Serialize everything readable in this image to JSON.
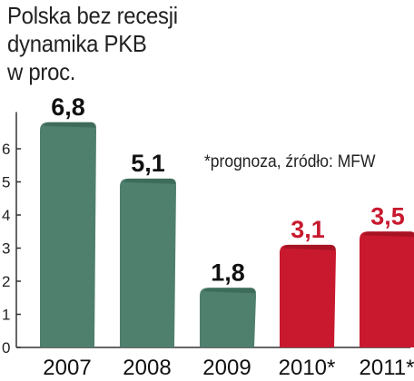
{
  "chart_data": {
    "type": "bar",
    "title_lines": [
      "Polska bez recesji",
      "dynamika PKB",
      "w proc."
    ],
    "note": "*prognoza, źródło: MFW",
    "categories": [
      "2007",
      "2008",
      "2009",
      "2010*",
      "2011*"
    ],
    "values": [
      6.8,
      5.1,
      1.8,
      3.1,
      3.5
    ],
    "value_labels": [
      "6,8",
      "5,1",
      "1,8",
      "3,1",
      "3,5"
    ],
    "y_ticks": [
      0,
      1,
      2,
      3,
      4,
      5,
      6
    ],
    "ylim": [
      0,
      7
    ],
    "grid": false,
    "bar_kinds": [
      "actual",
      "actual",
      "actual",
      "forecast",
      "forecast"
    ],
    "colors": {
      "actual": "#4f7f6d",
      "actual_dark": "#2f5c4b",
      "forecast": "#c8192e",
      "forecast_dark": "#8e0e1d",
      "axis": "#333333"
    }
  }
}
